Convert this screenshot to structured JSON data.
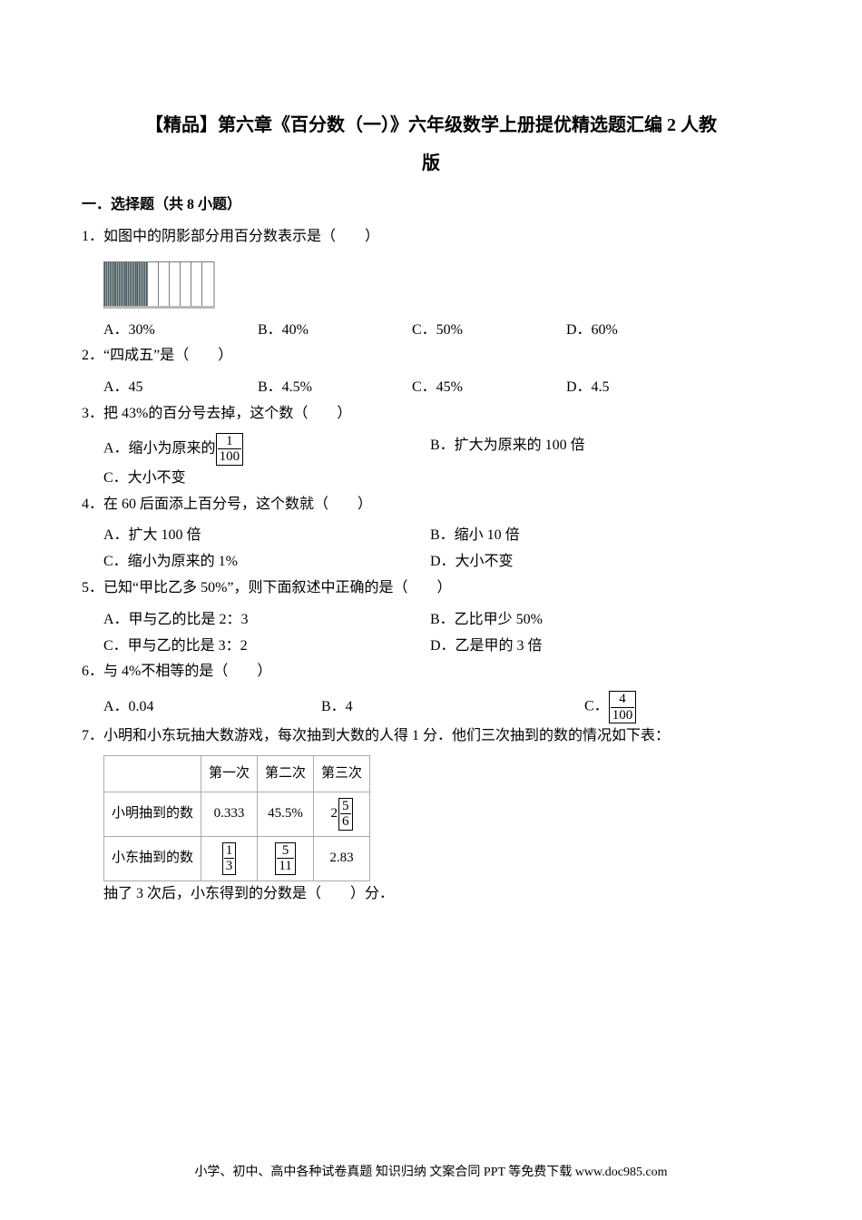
{
  "title_line1": "【精品】第六章《百分数（一）》六年级数学上册提优精选题汇编 2 人教",
  "title_line2": "版",
  "section1": "一．选择题（共 8 小题）",
  "q1": {
    "stem": "1．如图中的阴影部分用百分数表示是（　　）",
    "A": "A．30%",
    "B": "B．40%",
    "C": "C．50%",
    "D": "D．60%",
    "fig": {
      "cols": 10,
      "shaded": 4
    }
  },
  "q2": {
    "stem": "2．“四成五”是（　　）",
    "A": "A．45",
    "B": "B．4.5%",
    "C": "C．45%",
    "D": "D．4.5"
  },
  "q3": {
    "stem": "3．把 43%的百分号去掉，这个数（　　）",
    "A_pre": "A．缩小为原来的",
    "A_num": "1",
    "A_den": "100",
    "B": "B．扩大为原来的 100 倍",
    "C": "C．大小不变"
  },
  "q4": {
    "stem": "4．在 60 后面添上百分号，这个数就（　　）",
    "A": "A．扩大 100 倍",
    "B": "B．缩小 10 倍",
    "C": "C．缩小为原来的 1%",
    "D": "D．大小不变"
  },
  "q5": {
    "stem": "5．已知“甲比乙多 50%”，则下面叙述中正确的是（　　）",
    "A": "A．甲与乙的比是 2：3",
    "B": "B．乙比甲少 50%",
    "C": "C．甲与乙的比是 3：2",
    "D": "D．乙是甲的 3 倍"
  },
  "q6": {
    "stem": "6．与 4%不相等的是（　　）",
    "A": "A．0.04",
    "B": "B．4",
    "C_pre": "C．",
    "C_num": "4",
    "C_den": "100"
  },
  "q7": {
    "stem": "7．小明和小东玩抽大数游戏，每次抽到大数的人得 1 分．他们三次抽到的数的情况如下表：",
    "table": {
      "head": [
        "",
        "第一次",
        "第二次",
        "第三次"
      ],
      "row1_label": "小明抽到的数",
      "row1": [
        "0.333",
        "45.5%"
      ],
      "row1_mixed": {
        "whole": "2",
        "num": "5",
        "den": "6"
      },
      "row2_label": "小东抽到的数",
      "row2_c1": {
        "num": "1",
        "den": "3"
      },
      "row2_c2": {
        "num": "5",
        "den": "11"
      },
      "row2_c3": "2.83"
    },
    "tail": "抽了 3 次后，小东得到的分数是（　　）分．"
  },
  "footer": "小学、初中、高中各种试卷真题 知识归纳 文案合同 PPT 等免费下载  www.doc985.com"
}
